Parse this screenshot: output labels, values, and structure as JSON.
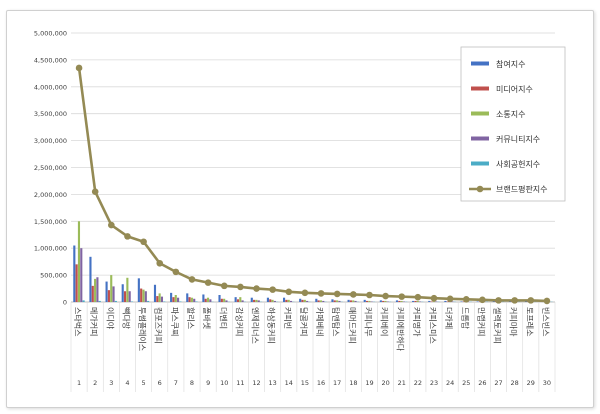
{
  "chart_data": {
    "type": "bar",
    "title": "",
    "xlabel": "",
    "ylabel": "",
    "ylim": [
      0,
      5000000
    ],
    "yticks": [
      0,
      500000,
      1000000,
      1500000,
      2000000,
      2500000,
      3000000,
      3500000,
      4000000,
      4500000,
      5000000
    ],
    "ytick_labels": [
      "0",
      "500,000",
      "1,000,000",
      "1,500,000",
      "2,000,000",
      "2,500,000",
      "3,000,000",
      "3,500,000",
      "4,000,000",
      "4,500,000",
      "5,000,000"
    ],
    "grid": true,
    "legend_position": "right",
    "categories": [
      "스타벅스",
      "메가커피",
      "이디야",
      "빽다방",
      "투썸플레이스",
      "컴포즈커피",
      "파스쿠찌",
      "할리스",
      "폴바셋",
      "더벤티",
      "감성커피",
      "엔제리너스",
      "하삼동커피",
      "커피빈",
      "달콤커피",
      "카페베네",
      "탐앤탐스",
      "매머드커피",
      "커피나무",
      "커피베이",
      "커피에반하다",
      "커피명가",
      "커피스미스",
      "더카페",
      "드롭탑",
      "만랩커피",
      "셀렉토커피",
      "커피마마",
      "토프레소",
      "빈스빈스"
    ],
    "numbers": [
      "1",
      "2",
      "3",
      "4",
      "5",
      "6",
      "7",
      "8",
      "9",
      "10",
      "11",
      "12",
      "13",
      "14",
      "15",
      "16",
      "17",
      "18",
      "19",
      "20",
      "21",
      "22",
      "23",
      "24",
      "25",
      "26",
      "27",
      "28",
      "29",
      "30"
    ],
    "series": [
      {
        "name": "참여지수",
        "kind": "bar",
        "color": "#4472c4",
        "values": [
          1050000,
          840000,
          380000,
          330000,
          440000,
          320000,
          170000,
          160000,
          140000,
          130000,
          90000,
          80000,
          80000,
          80000,
          60000,
          60000,
          50000,
          40000,
          40000,
          30000,
          30000,
          20000,
          20000,
          20000,
          10000,
          10000,
          10000,
          10000,
          10000,
          10000
        ]
      },
      {
        "name": "미디어지수",
        "kind": "bar",
        "color": "#c0504d",
        "values": [
          700000,
          300000,
          220000,
          200000,
          250000,
          110000,
          90000,
          90000,
          60000,
          60000,
          50000,
          40000,
          50000,
          40000,
          40000,
          30000,
          30000,
          30000,
          20000,
          20000,
          20000,
          20000,
          10000,
          10000,
          10000,
          10000,
          10000,
          10000,
          10000,
          10000
        ]
      },
      {
        "name": "소통지수",
        "kind": "bar",
        "color": "#9bbb59",
        "values": [
          1500000,
          430000,
          500000,
          450000,
          230000,
          160000,
          130000,
          80000,
          80000,
          60000,
          90000,
          40000,
          40000,
          40000,
          40000,
          30000,
          30000,
          30000,
          20000,
          20000,
          20000,
          20000,
          10000,
          10000,
          10000,
          10000,
          10000,
          10000,
          10000,
          10000
        ]
      },
      {
        "name": "커뮤니티지수",
        "kind": "bar",
        "color": "#8064a2",
        "values": [
          1000000,
          460000,
          290000,
          200000,
          200000,
          100000,
          80000,
          60000,
          50000,
          30000,
          30000,
          30000,
          20000,
          20000,
          20000,
          20000,
          20000,
          20000,
          10000,
          10000,
          10000,
          10000,
          10000,
          10000,
          5000,
          5000,
          5000,
          5000,
          5000,
          5000
        ]
      },
      {
        "name": "사회공헌지수",
        "kind": "bar",
        "color": "#4bacc6",
        "values": [
          30000,
          20000,
          20000,
          10000,
          20000,
          10000,
          10000,
          10000,
          5000,
          5000,
          5000,
          5000,
          5000,
          5000,
          5000,
          5000,
          5000,
          5000,
          5000,
          5000,
          5000,
          5000,
          5000,
          5000,
          5000,
          5000,
          5000,
          5000,
          5000,
          5000
        ]
      },
      {
        "name": "브랜드평판지수",
        "kind": "line",
        "color": "#948a54",
        "values": [
          4350000,
          2050000,
          1430000,
          1220000,
          1120000,
          720000,
          560000,
          420000,
          360000,
          300000,
          280000,
          250000,
          230000,
          190000,
          170000,
          160000,
          150000,
          140000,
          130000,
          110000,
          100000,
          90000,
          70000,
          60000,
          50000,
          40000,
          30000,
          30000,
          30000,
          20000
        ]
      }
    ]
  }
}
